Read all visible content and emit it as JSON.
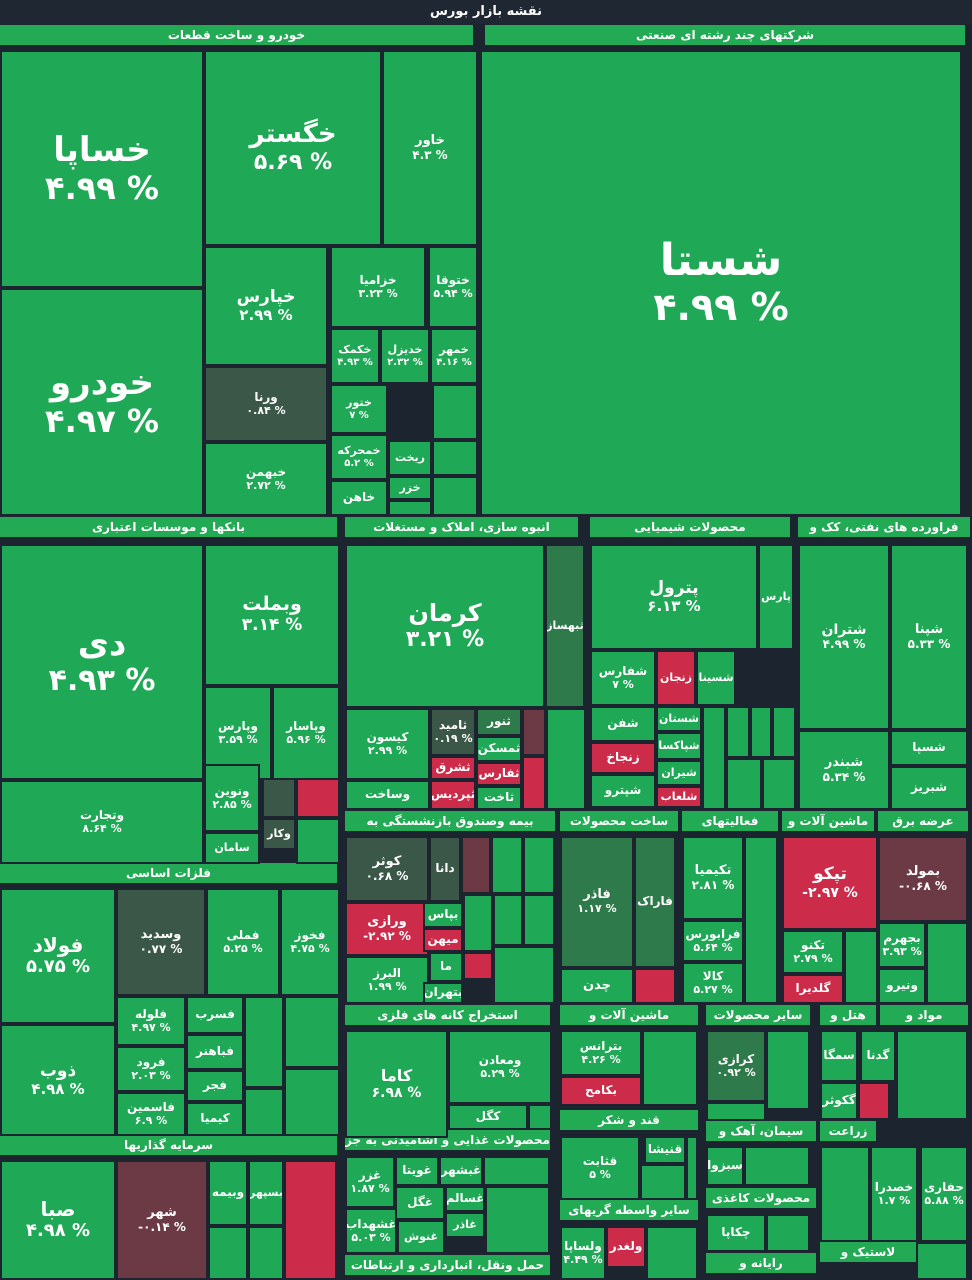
{
  "title": "نقشه بازار بورس",
  "colors": {
    "up": "#1fa855",
    "up_light": "#2dbb5f",
    "mid": "#2f7a4a",
    "flat": "#3b5748",
    "down": "#cc2c4a",
    "down_dark": "#6b3a45",
    "bg": "#1c2430",
    "header": "#22aa55"
  },
  "chart_data": {
    "type": "treemap",
    "title": "نقشه بازار بورس",
    "sectors": [
      "خودرو و ساخت قطعات",
      "شرکتهای چند رشته ای صنعتی",
      "بانکها و موسسات اعتباری",
      "انبوه سازی، املاک و مستغلات",
      "محصولات شیمیایی",
      "فراورده های نفتی، کک و",
      "فلزات اساسی",
      "بیمه وصندوق بازنشستگی به",
      "ساخت محصولات",
      "فعالیتهای",
      "ماشین آلات و",
      "عرضه برق",
      "استخراج کانه های فلزی",
      "ماشین آلات و",
      "سایر محصولات",
      "هتل و",
      "مواد و",
      "قند و شکر",
      "سیمان، آهک و",
      "زراعت",
      "محصولات غذایی و آشامیدنی به جز",
      "سایر واسطه گریهای",
      "محصولات کاغذی",
      "سرمایه گذاریها",
      "لاستیک و",
      "رایانه و",
      "حمل ونقل، انبارداری و ارتباطات"
    ],
    "tiles": [
      {
        "name": "خساپا",
        "value": "۴.۹۹ %",
        "change": 4.99
      },
      {
        "name": "خودرو",
        "value": "۴.۹۷ %",
        "change": 4.97
      },
      {
        "name": "خگستر",
        "value": "۵.۶۹ %",
        "change": 5.69
      },
      {
        "name": "خاور",
        "value": "۴.۳ %",
        "change": 4.3
      },
      {
        "name": "خپارس",
        "value": "۲.۹۹ %",
        "change": 2.99
      },
      {
        "name": "خزامیا",
        "value": "۳.۲۳ %",
        "change": 3.23
      },
      {
        "name": "ختوقا",
        "value": "۵.۹۴ %",
        "change": 5.94
      },
      {
        "name": "خکمک",
        "value": "۴.۹۳ %",
        "change": 4.93
      },
      {
        "name": "خدیزل",
        "value": "۲.۳۲ %",
        "change": 2.32
      },
      {
        "name": "خمهر",
        "value": "۴.۱۶ %",
        "change": 4.16
      },
      {
        "name": "ورنا",
        "value": "۰.۸۴ %",
        "change": 0.84
      },
      {
        "name": "ختور",
        "value": "۷ %",
        "change": 7
      },
      {
        "name": "خمحرکه",
        "value": "۵.۲ %",
        "change": 5.2
      },
      {
        "name": "خبهمن",
        "value": "۲.۷۲ %",
        "change": 2.72
      },
      {
        "name": "خاهن",
        "value": "",
        "change": null
      },
      {
        "name": "ریخت",
        "value": "",
        "change": null
      },
      {
        "name": "خزر",
        "value": "",
        "change": null
      },
      {
        "name": "شستا",
        "value": "۴.۹۹ %",
        "change": 4.99
      },
      {
        "name": "دی",
        "value": "۴.۹۳ %",
        "change": 4.93
      },
      {
        "name": "وبملت",
        "value": "۳.۱۴ %",
        "change": 3.14
      },
      {
        "name": "وپارس",
        "value": "۳.۵۹ %",
        "change": 3.59
      },
      {
        "name": "وپاسار",
        "value": "۵.۹۶ %",
        "change": 5.96
      },
      {
        "name": "ونوین",
        "value": "۲.۸۵ %",
        "change": 2.85
      },
      {
        "name": "وتجارت",
        "value": "۸.۶۴ %",
        "change": 8.64
      },
      {
        "name": "وکار",
        "value": "",
        "change": null
      },
      {
        "name": "سامان",
        "value": "",
        "change": null
      },
      {
        "name": "کرمان",
        "value": "۳.۲۱ %",
        "change": 3.21
      },
      {
        "name": "ثبهساز",
        "value": "",
        "change": null
      },
      {
        "name": "کیسون",
        "value": "۲.۹۹ %",
        "change": 2.99
      },
      {
        "name": "ثامید",
        "value": "۰.۱۹ %",
        "change": 0.19
      },
      {
        "name": "ثنور",
        "value": "",
        "change": null
      },
      {
        "name": "ثمسکن",
        "value": "",
        "change": null
      },
      {
        "name": "ثشرق",
        "value": "",
        "change": null
      },
      {
        "name": "ثفارس",
        "value": "",
        "change": null
      },
      {
        "name": "وساخت",
        "value": "",
        "change": null
      },
      {
        "name": "ثپردیس",
        "value": "",
        "change": null
      },
      {
        "name": "ثاخت",
        "value": "",
        "change": null
      },
      {
        "name": "پترول",
        "value": "۶.۱۳ %",
        "change": 6.13
      },
      {
        "name": "پارس",
        "value": "",
        "change": null
      },
      {
        "name": "شفارس",
        "value": "۷ %",
        "change": 7
      },
      {
        "name": "زنجان",
        "value": "",
        "change": null
      },
      {
        "name": "شسینا",
        "value": "",
        "change": null
      },
      {
        "name": "شفن",
        "value": "",
        "change": null
      },
      {
        "name": "شستان",
        "value": "",
        "change": null
      },
      {
        "name": "زنجاخ",
        "value": "",
        "change": null
      },
      {
        "name": "شپاکسا",
        "value": "",
        "change": null
      },
      {
        "name": "شیران",
        "value": "",
        "change": null
      },
      {
        "name": "شپترو",
        "value": "",
        "change": null
      },
      {
        "name": "شلعاب",
        "value": "",
        "change": null
      },
      {
        "name": "شتران",
        "value": "۴.۹۹ %",
        "change": 4.99
      },
      {
        "name": "شپنا",
        "value": "۵.۳۳ %",
        "change": 5.33
      },
      {
        "name": "شبندر",
        "value": "۵.۳۴ %",
        "change": 5.34
      },
      {
        "name": "شسپا",
        "value": "",
        "change": null
      },
      {
        "name": "شبریز",
        "value": "",
        "change": null
      },
      {
        "name": "فولاد",
        "value": "۵.۷۵ %",
        "change": 5.75
      },
      {
        "name": "وسدید",
        "value": "۰.۷۷ %",
        "change": 0.77
      },
      {
        "name": "فملی",
        "value": "۵.۲۵ %",
        "change": 5.25
      },
      {
        "name": "فخوز",
        "value": "۴.۷۵ %",
        "change": 4.75
      },
      {
        "name": "ذوب",
        "value": "۴.۹۸ %",
        "change": 4.98
      },
      {
        "name": "فلوله",
        "value": "۴.۹۷ %",
        "change": 4.97
      },
      {
        "name": "فسرب",
        "value": "",
        "change": null
      },
      {
        "name": "فرود",
        "value": "۲.۰۳ %",
        "change": 2.03
      },
      {
        "name": "فباهنر",
        "value": "",
        "change": null
      },
      {
        "name": "فاسمین",
        "value": "۶.۹ %",
        "change": 6.9
      },
      {
        "name": "فجر",
        "value": "",
        "change": null
      },
      {
        "name": "کیمیا",
        "value": "",
        "change": null
      },
      {
        "name": "کوثر",
        "value": "۰.۶۸ %",
        "change": 0.68
      },
      {
        "name": "دانا",
        "value": "",
        "change": null
      },
      {
        "name": "ورازی",
        "value": "-۲.۹۲ %",
        "change": -2.92
      },
      {
        "name": "بپاس",
        "value": "",
        "change": null
      },
      {
        "name": "میهن",
        "value": "",
        "change": null
      },
      {
        "name": "البرز",
        "value": "۱.۹۹ %",
        "change": 1.99
      },
      {
        "name": "ما",
        "value": "",
        "change": null
      },
      {
        "name": "بتهران",
        "value": "",
        "change": null
      },
      {
        "name": "فاذر",
        "value": "۱.۱۷ %",
        "change": 1.17
      },
      {
        "name": "فاراک",
        "value": "",
        "change": null
      },
      {
        "name": "چدن",
        "value": "",
        "change": null
      },
      {
        "name": "تکیمیا",
        "value": "۲.۸۱ %",
        "change": 2.81
      },
      {
        "name": "فرابورس",
        "value": "۵.۶۴ %",
        "change": 5.64
      },
      {
        "name": "کالا",
        "value": "۵.۲۷ %",
        "change": 5.27
      },
      {
        "name": "تپکو",
        "value": "-۲.۹۷ %",
        "change": -2.97
      },
      {
        "name": "تکنو",
        "value": "۲.۷۹ %",
        "change": 2.79
      },
      {
        "name": "گلدیرا",
        "value": "",
        "change": null
      },
      {
        "name": "بمولد",
        "value": "-۰.۶۸ %",
        "change": -0.68
      },
      {
        "name": "بجهرم",
        "value": "۳.۹۳ %",
        "change": 3.93
      },
      {
        "name": "ونیرو",
        "value": "",
        "change": null
      },
      {
        "name": "کاما",
        "value": "۶.۹۸ %",
        "change": 6.98
      },
      {
        "name": "ومعادن",
        "value": "۵.۲۹ %",
        "change": 5.29
      },
      {
        "name": "کگل",
        "value": "",
        "change": null
      },
      {
        "name": "بترانس",
        "value": "۴.۲۶ %",
        "change": 4.26
      },
      {
        "name": "بکامح",
        "value": "",
        "change": null
      },
      {
        "name": "کرازی",
        "value": "۰.۹۲ %",
        "change": 0.92
      },
      {
        "name": "سمگا",
        "value": "",
        "change": null
      },
      {
        "name": "گدنا",
        "value": "",
        "change": null
      },
      {
        "name": "گکوثر",
        "value": "",
        "change": null
      },
      {
        "name": "قثابت",
        "value": "۵ %",
        "change": 5
      },
      {
        "name": "قنیشا",
        "value": "",
        "change": null
      },
      {
        "name": "سبزوا",
        "value": "",
        "change": null
      },
      {
        "name": "خصدرا",
        "value": "۱.۷ %",
        "change": 1.7
      },
      {
        "name": "حفاری",
        "value": "۵.۸۸ %",
        "change": 5.88
      },
      {
        "name": "غزر",
        "value": "۱.۸۷ %",
        "change": 1.87
      },
      {
        "name": "غویتا",
        "value": "",
        "change": null
      },
      {
        "name": "غبشهر",
        "value": "",
        "change": null
      },
      {
        "name": "غگل",
        "value": "",
        "change": null
      },
      {
        "name": "غسالم",
        "value": "",
        "change": null
      },
      {
        "name": "غشهداب",
        "value": "۵.۰۳ %",
        "change": 5.03
      },
      {
        "name": "غاذر",
        "value": "",
        "change": null
      },
      {
        "name": "غنوش",
        "value": "",
        "change": null
      },
      {
        "name": "ولساپا",
        "value": "۴.۴۹ %",
        "change": 4.49
      },
      {
        "name": "ولغدر",
        "value": "",
        "change": null
      },
      {
        "name": "چکاپا",
        "value": "",
        "change": null
      },
      {
        "name": "صبا",
        "value": "۴.۹۸ %",
        "change": 4.98
      },
      {
        "name": "شهر",
        "value": "-۰.۱۴ %",
        "change": -0.14
      },
      {
        "name": "وبیمه",
        "value": "",
        "change": null
      },
      {
        "name": "بسپهر",
        "value": "",
        "change": null
      }
    ]
  }
}
